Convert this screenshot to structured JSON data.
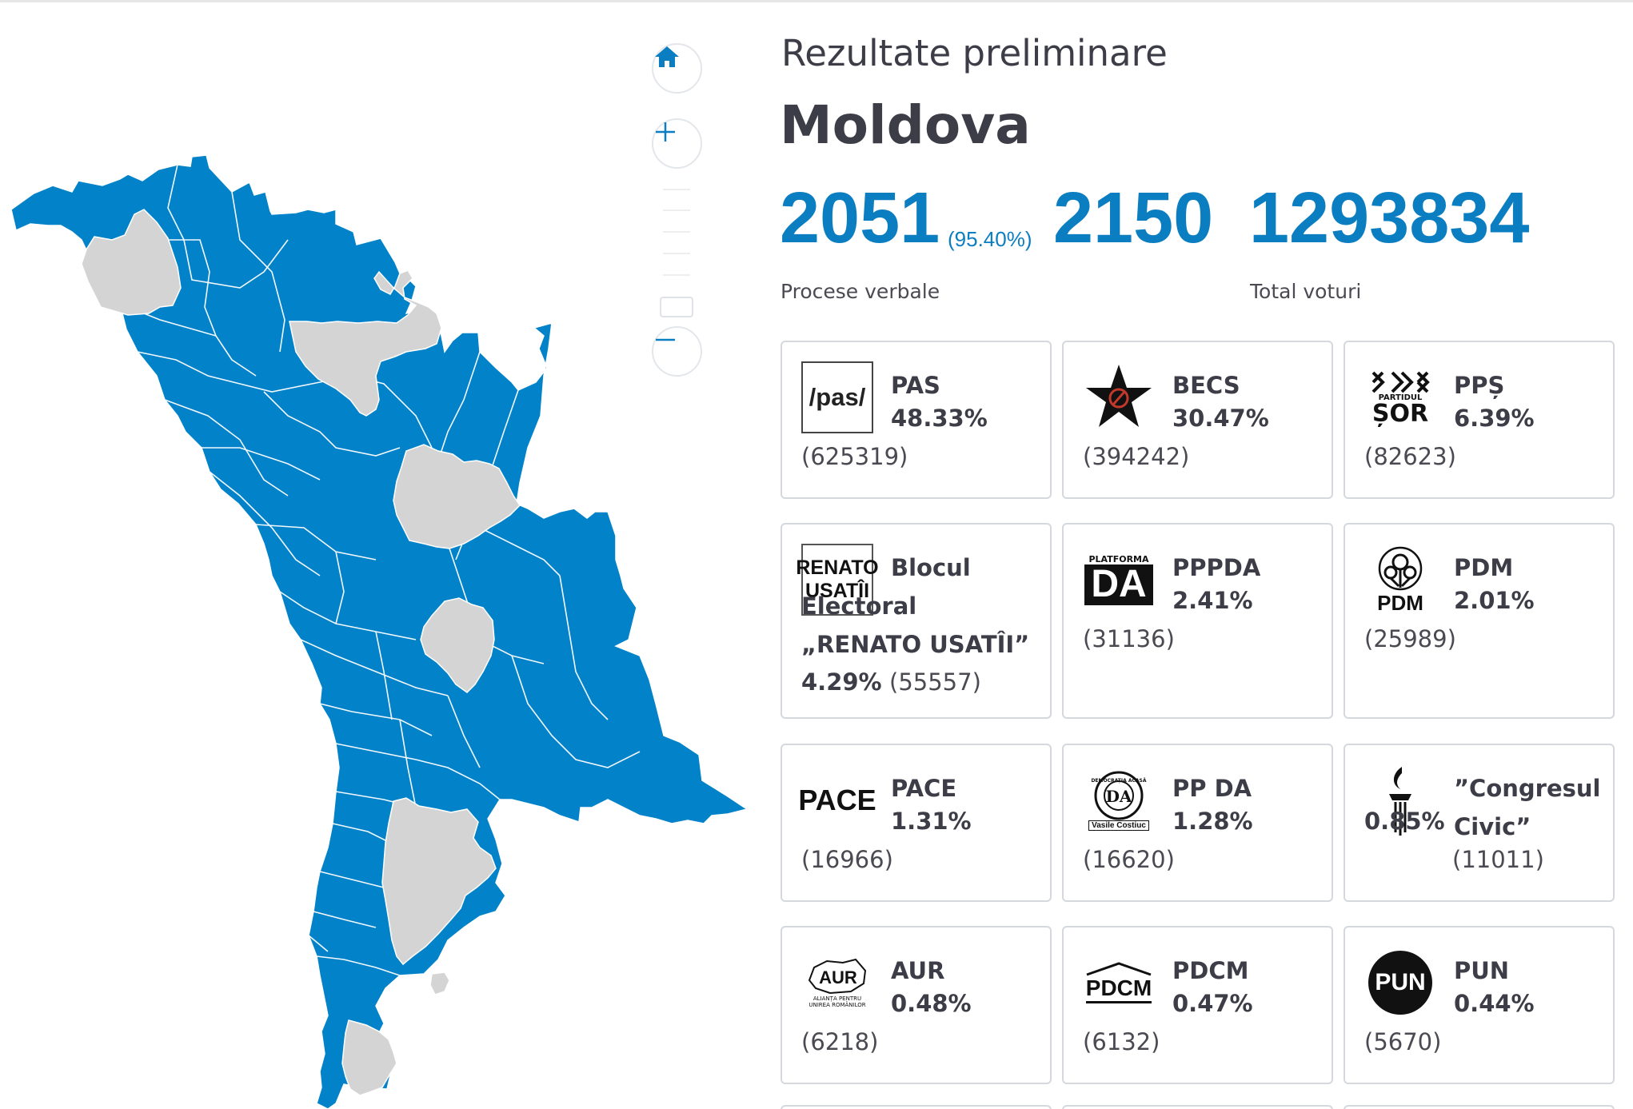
{
  "header": {
    "subtitle": "Rezultate preliminare",
    "region": "Moldova"
  },
  "stats": {
    "protocols_processed": "2051",
    "protocols_percent": "(95.40%)",
    "protocols_total": "2150",
    "total_votes": "1293834",
    "protocols_label": "Procese verbale",
    "votes_label": "Total voturi"
  },
  "colors": {
    "leader_region": "#0282c9",
    "other_region": "#d4d4d4",
    "accent": "#0b7ec2"
  },
  "map_controls": {
    "home_icon": "home-icon",
    "zoom_in_icon": "plus-icon",
    "zoom_out_icon": "minus-icon"
  },
  "parties": [
    {
      "name": "PAS",
      "percent": "48.33%",
      "votes": "(625319)",
      "logo": "/pas/"
    },
    {
      "name": "BECS",
      "percent": "30.47%",
      "votes": "(394242)",
      "logo": "star-hammer-sickle-icon"
    },
    {
      "name": "PPȘ",
      "percent": "6.39%",
      "votes": "(82623)",
      "logo_small": "PARTIDUL",
      "logo_big": "ȘOR"
    },
    {
      "name": "Blocul Electoral „RENATO USATÎI”",
      "percent": "4.29%",
      "votes": "(55557)",
      "logo_top": "RENATO",
      "logo_bottom": "USATÎI"
    },
    {
      "name": "PPPDA",
      "percent": "2.41%",
      "votes": "(31136)",
      "logo_small": "PLATFORMA",
      "logo_big": "DA"
    },
    {
      "name": "PDM",
      "percent": "2.01%",
      "votes": "(25989)",
      "logo": "PDM"
    },
    {
      "name": "PACE",
      "percent": "1.31%",
      "votes": "(16966)",
      "logo": "PACE"
    },
    {
      "name": "PP DA",
      "percent": "1.28%",
      "votes": "(16620)",
      "logo_top": "DEMOCRAȚIA ACASĂ",
      "logo_mid": "DA",
      "logo_bottom": "Vasile Costiuc"
    },
    {
      "name": "”Congresul Civic”",
      "percent": "0.85%",
      "votes": "(11011)",
      "logo": "torch-icon"
    },
    {
      "name": "AUR",
      "percent": "0.48%",
      "votes": "(6218)",
      "logo": "AUR",
      "logo_caption": "ALIANȚA PENTRU UNIREA ROMÂNILOR"
    },
    {
      "name": "PDCM",
      "percent": "0.47%",
      "votes": "(6132)",
      "logo": "PDCM"
    },
    {
      "name": "PUN",
      "percent": "0.44%",
      "votes": "(5670)",
      "logo": "PUN"
    }
  ]
}
